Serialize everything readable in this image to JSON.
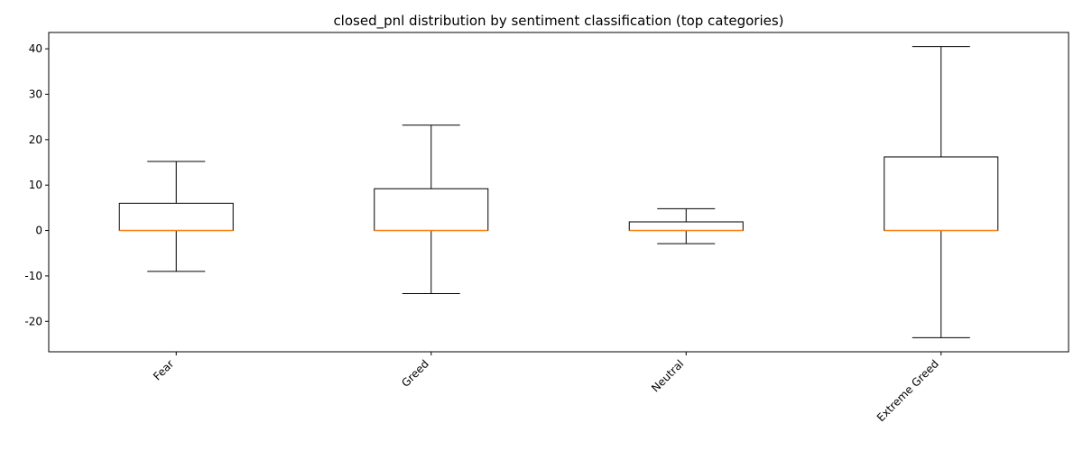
{
  "chart_data": {
    "type": "boxplot",
    "title": "closed_pnl distribution by sentiment classification (top categories)",
    "xlabel": "",
    "ylabel": "",
    "ylim": [
      -26.7,
      43.6
    ],
    "yticks": [
      -20,
      -10,
      0,
      10,
      20,
      30,
      40
    ],
    "grid": false,
    "categories": [
      "Fear",
      "Greed",
      "Neutral",
      "Extreme Greed"
    ],
    "boxes": [
      {
        "category": "Fear",
        "whisker_low": -9.0,
        "q1": 0.0,
        "median": 0.0,
        "q3": 6.0,
        "whisker_high": 15.2
      },
      {
        "category": "Greed",
        "whisker_low": -13.9,
        "q1": 0.0,
        "median": 0.0,
        "q3": 9.2,
        "whisker_high": 23.2
      },
      {
        "category": "Neutral",
        "whisker_low": -2.9,
        "q1": 0.0,
        "median": 0.0,
        "q3": 1.9,
        "whisker_high": 4.8
      },
      {
        "category": "Extreme Greed",
        "whisker_low": -23.6,
        "q1": 0.0,
        "median": 0.0,
        "q3": 16.2,
        "whisker_high": 40.5
      }
    ],
    "colors": {
      "box": "#000000",
      "median": "#ff7f0e"
    }
  }
}
